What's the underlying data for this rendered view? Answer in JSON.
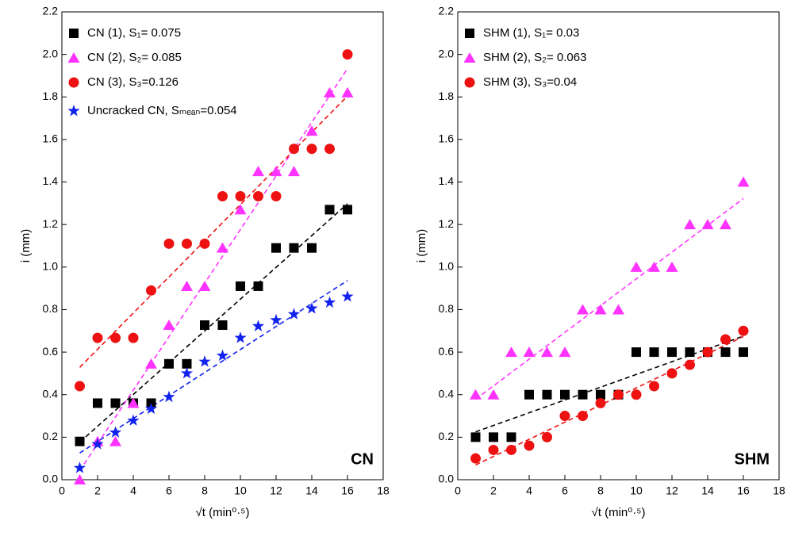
{
  "chart_data": [
    {
      "type": "scatter",
      "annotation": "CN",
      "xlabel": "√t (min⁰·⁵)",
      "ylabel": "i (mm)",
      "x": [
        1,
        2,
        3,
        4,
        5,
        6,
        7,
        8,
        9,
        10,
        11,
        12,
        13,
        14,
        15,
        16
      ],
      "series": [
        {
          "name": "CN (1), S₁= 0.075",
          "color": "#000000",
          "marker": "square",
          "values": [
            0.18,
            0.36,
            0.36,
            0.36,
            0.36,
            0.545,
            0.545,
            0.727,
            0.727,
            0.91,
            0.91,
            1.09,
            1.09,
            1.09,
            1.27,
            1.27
          ]
        },
        {
          "name": "CN (2), S₂= 0.085",
          "color": "#ff33ff",
          "marker": "triangle",
          "values": [
            0,
            0.18,
            0.18,
            0.36,
            0.545,
            0.727,
            0.91,
            0.91,
            1.09,
            1.27,
            1.45,
            1.45,
            1.45,
            1.64,
            1.82,
            1.82
          ]
        },
        {
          "name": "CN (3), S₃=0.126",
          "color": "#ee1111",
          "marker": "circle",
          "values": [
            0.44,
            0.667,
            0.667,
            0.667,
            0.89,
            1.11,
            1.11,
            1.11,
            1.333,
            1.333,
            1.333,
            1.333,
            1.556,
            1.556,
            1.556,
            2.0
          ]
        },
        {
          "name": "Uncracked CN, Sₘₑₐₙ=0.054",
          "color": "#1122ee",
          "marker": "star",
          "values": [
            0.055,
            0.167,
            0.222,
            0.278,
            0.333,
            0.389,
            0.5,
            0.555,
            0.583,
            0.667,
            0.722,
            0.75,
            0.778,
            0.805,
            0.833,
            0.861
          ]
        }
      ],
      "trendline": true,
      "xlim": [
        0,
        18
      ],
      "xticks": [
        0,
        2,
        4,
        6,
        8,
        10,
        12,
        14,
        16,
        18
      ],
      "ylim": [
        0,
        2.2
      ],
      "yticks": [
        {
          "value": 0,
          "label": "0.0"
        },
        0.2,
        0.4,
        0.6,
        0.8,
        {
          "value": 1,
          "label": "1.0"
        },
        1.2,
        1.4,
        1.6,
        1.8,
        {
          "value": 2,
          "label": "2.0"
        },
        2.2
      ]
    },
    {
      "type": "scatter",
      "annotation": "SHM",
      "xlabel": "√t (min⁰·⁵)",
      "ylabel": "i (mm)",
      "x": [
        1,
        2,
        3,
        4,
        5,
        6,
        7,
        8,
        9,
        10,
        11,
        12,
        13,
        14,
        15,
        16
      ],
      "series": [
        {
          "name": "SHM (1), S₁= 0.03",
          "color": "#000000",
          "marker": "square",
          "values": [
            0.2,
            0.2,
            0.2,
            0.4,
            0.4,
            0.4,
            0.4,
            0.4,
            0.4,
            0.6,
            0.6,
            0.6,
            0.6,
            0.6,
            0.6,
            0.6
          ]
        },
        {
          "name": "SHM (2), S₂= 0.063",
          "color": "#ff33ff",
          "marker": "triangle",
          "values": [
            0.4,
            0.4,
            0.6,
            0.6,
            0.6,
            0.6,
            0.8,
            0.8,
            0.8,
            1.0,
            1.0,
            1.0,
            1.2,
            1.2,
            1.2,
            1.4
          ]
        },
        {
          "name": "SHM (3), S₃=0.04",
          "color": "#ee1111",
          "marker": "circle",
          "values": [
            0.1,
            0.14,
            0.14,
            0.16,
            0.2,
            0.3,
            0.3,
            0.36,
            0.4,
            0.4,
            0.44,
            0.5,
            0.54,
            0.6,
            0.66,
            0.7
          ]
        }
      ],
      "trendline": true,
      "xlim": [
        0,
        18
      ],
      "xticks": [
        0,
        2,
        4,
        6,
        8,
        10,
        12,
        14,
        16,
        18
      ],
      "ylim": [
        0,
        2.2
      ],
      "yticks": [
        {
          "value": 0,
          "label": "0.0"
        },
        0.2,
        0.4,
        0.6,
        0.8,
        {
          "value": 1,
          "label": "1.0"
        },
        1.2,
        1.4,
        1.6,
        1.8,
        {
          "value": 2,
          "label": "2.0"
        },
        2.2
      ]
    }
  ]
}
